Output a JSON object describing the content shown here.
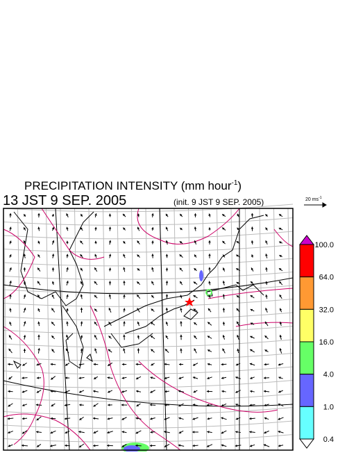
{
  "title": {
    "text": "PRECIPITATION INTENSITY (mm hour",
    "superscript": "-1",
    "close": ")"
  },
  "valid_time": "13 JST 9 SEP. 2005",
  "init_time": "(init. 9 JST 9 SEP. 2005)",
  "wind_scale": {
    "text": "20 ms",
    "superscript": "-1"
  },
  "colorbar": {
    "labels": [
      "100.0",
      "64.0",
      "32.0",
      "16.0",
      "4.0",
      "1.0",
      "0.4"
    ],
    "colors": [
      "#cc00cc",
      "#ff0000",
      "#ff9933",
      "#ffff66",
      "#66ff66",
      "#6666ff",
      "#66ffff",
      "#ffffff"
    ]
  }
}
